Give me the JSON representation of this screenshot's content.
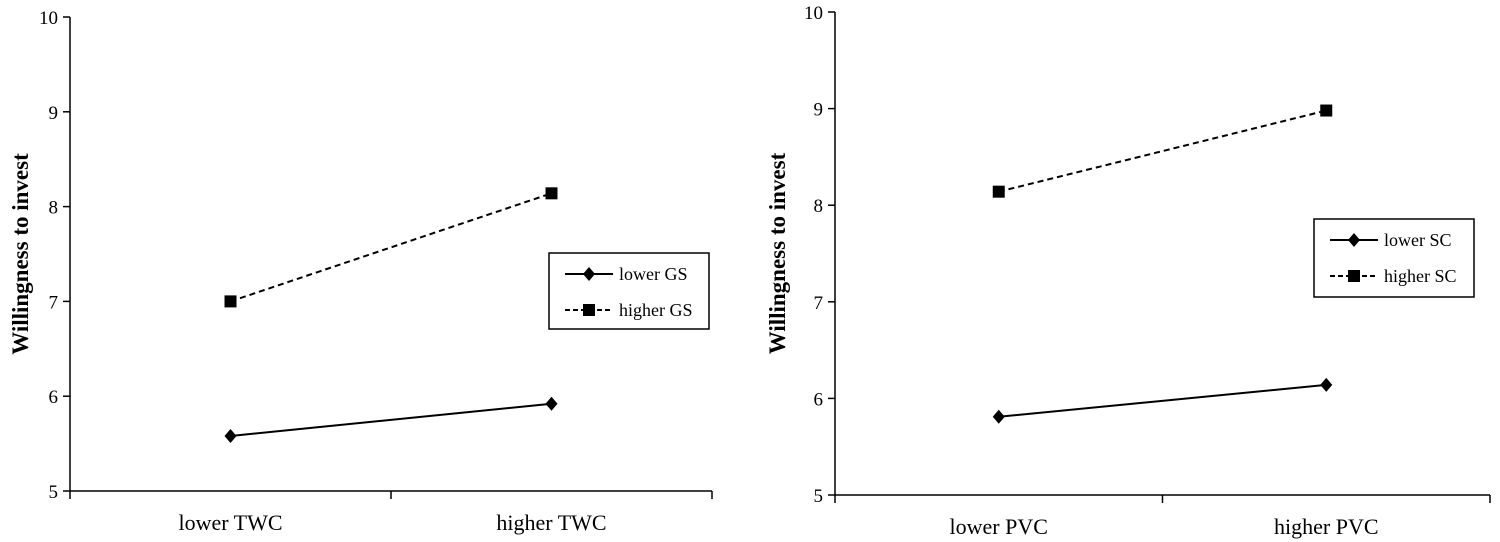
{
  "chart_data": [
    {
      "type": "line",
      "ylabel": "Willingness to invest",
      "ylim": [
        5,
        10
      ],
      "yticks": [
        "5",
        "6",
        "7",
        "8",
        "9",
        "10"
      ],
      "categories": [
        "lower TWC",
        "higher TWC"
      ],
      "series": [
        {
          "name": "lower GS",
          "values": [
            5.58,
            5.92
          ],
          "marker": "diamond",
          "dash": "solid"
        },
        {
          "name": "higher GS",
          "values": [
            7.0,
            8.14
          ],
          "marker": "square",
          "dash": "dashed"
        }
      ],
      "legend": "right"
    },
    {
      "type": "line",
      "ylabel": "Willingness to invest",
      "ylim": [
        5,
        10
      ],
      "yticks": [
        "5",
        "6",
        "7",
        "8",
        "9",
        "10"
      ],
      "categories": [
        "lower PVC",
        "higher PVC"
      ],
      "series": [
        {
          "name": "lower SC",
          "values": [
            5.81,
            6.14
          ],
          "marker": "diamond",
          "dash": "solid"
        },
        {
          "name": "higher SC",
          "values": [
            8.14,
            8.98
          ],
          "marker": "square",
          "dash": "dashed"
        }
      ],
      "legend": "top-right"
    }
  ]
}
